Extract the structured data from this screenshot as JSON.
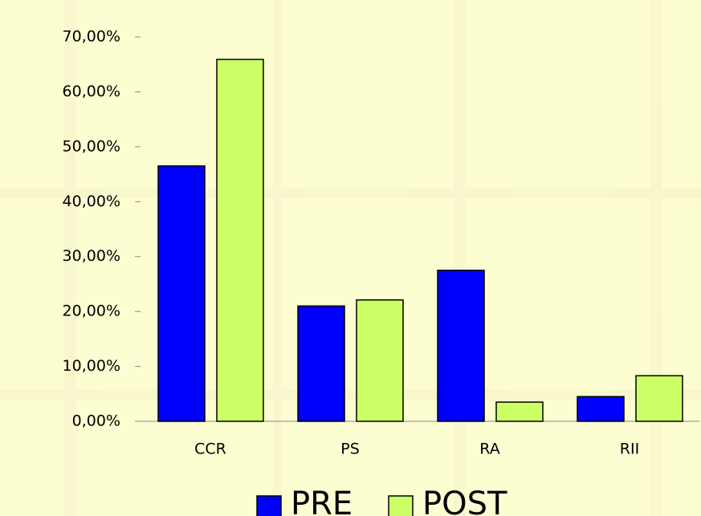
{
  "chart_data": {
    "type": "bar",
    "categories": [
      "CCR",
      "PS",
      "RA",
      "RII"
    ],
    "series": [
      {
        "name": "PRE",
        "color": "#0000ff",
        "values": [
          46.5,
          21.0,
          27.5,
          4.5
        ]
      },
      {
        "name": "POST",
        "color": "#ccff66",
        "values": [
          65.9,
          22.1,
          3.5,
          8.3
        ]
      }
    ],
    "ylim": [
      0,
      70
    ],
    "yticks": [
      {
        "value": 0,
        "label": "0,00%"
      },
      {
        "value": 10,
        "label": "10,00%"
      },
      {
        "value": 20,
        "label": "20,00%"
      },
      {
        "value": 30,
        "label": "30,00%"
      },
      {
        "value": 40,
        "label": "40,00%"
      },
      {
        "value": 50,
        "label": "50,00%"
      },
      {
        "value": 60,
        "label": "60,00%"
      },
      {
        "value": 70,
        "label": "70,00%"
      }
    ],
    "legend": "bottom"
  }
}
